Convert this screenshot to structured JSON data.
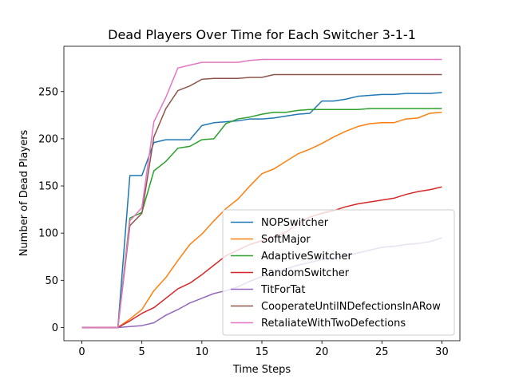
{
  "chart_data": {
    "type": "line",
    "title": "Dead Players Over Time for Each Switcher 3-1-1",
    "xlabel": "Time Steps",
    "ylabel": "Number of Dead Players",
    "xlim": [
      -1.5,
      31.5
    ],
    "ylim": [
      -14,
      298
    ],
    "xticks": [
      0,
      5,
      10,
      15,
      20,
      25,
      30
    ],
    "yticks": [
      0,
      50,
      100,
      150,
      200,
      250
    ],
    "grid": false,
    "legend_position": "lower-right",
    "x": [
      0,
      1,
      2,
      3,
      4,
      5,
      6,
      7,
      8,
      9,
      10,
      11,
      12,
      13,
      14,
      15,
      16,
      17,
      18,
      19,
      20,
      21,
      22,
      23,
      24,
      25,
      26,
      27,
      28,
      29,
      30
    ],
    "series": [
      {
        "name": "NOPSwitcher",
        "color": "#1f77b4",
        "values": [
          0,
          0,
          0,
          0,
          161,
          161,
          196,
          199,
          199,
          199,
          214,
          217,
          218,
          219,
          221,
          221,
          222,
          224,
          226,
          227,
          240,
          240,
          242,
          245,
          246,
          247,
          247,
          248,
          248,
          248,
          249
        ]
      },
      {
        "name": "SoftMajor",
        "color": "#ff7f0e",
        "values": [
          0,
          0,
          0,
          0,
          9,
          19,
          39,
          53,
          71,
          88,
          99,
          113,
          126,
          136,
          150,
          163,
          168,
          176,
          184,
          189,
          195,
          202,
          208,
          213,
          216,
          217,
          217,
          221,
          222,
          227,
          228
        ]
      },
      {
        "name": "AdaptiveSwitcher",
        "color": "#2ca02c",
        "values": [
          0,
          0,
          0,
          0,
          116,
          122,
          166,
          176,
          190,
          192,
          199,
          200,
          216,
          221,
          223,
          226,
          228,
          228,
          230,
          231,
          231,
          231,
          231,
          231,
          232,
          232,
          232,
          232,
          232,
          232,
          232
        ]
      },
      {
        "name": "RandomSwitcher",
        "color": "#d62728",
        "values": [
          0,
          0,
          0,
          0,
          7,
          15,
          21,
          31,
          41,
          47,
          56,
          66,
          76,
          82,
          88,
          92,
          96,
          101,
          110,
          117,
          121,
          124,
          128,
          131,
          133,
          135,
          137,
          141,
          144,
          146,
          149
        ]
      },
      {
        "name": "TitForTat",
        "color": "#9467bd",
        "values": [
          0,
          0,
          0,
          0,
          1,
          2,
          5,
          13,
          19,
          26,
          31,
          36,
          39,
          43,
          49,
          54,
          58,
          62,
          66,
          69,
          72,
          74,
          76,
          79,
          82,
          85,
          86,
          88,
          89,
          91,
          95
        ]
      },
      {
        "name": "CooperateUntilNDefectionsInARow",
        "color": "#8c564b",
        "values": [
          0,
          0,
          0,
          0,
          108,
          121,
          202,
          232,
          251,
          256,
          263,
          264,
          264,
          264,
          265,
          265,
          268,
          268,
          268,
          268,
          268,
          268,
          268,
          268,
          268,
          268,
          268,
          268,
          268,
          268,
          268
        ]
      },
      {
        "name": "RetaliateWithTwoDefections",
        "color": "#e377c2",
        "values": [
          0,
          0,
          0,
          0,
          113,
          127,
          218,
          244,
          275,
          278,
          281,
          281,
          281,
          281,
          283,
          284,
          284,
          284,
          284,
          284,
          284,
          284,
          284,
          284,
          284,
          284,
          284,
          284,
          284,
          284,
          284
        ]
      }
    ]
  }
}
